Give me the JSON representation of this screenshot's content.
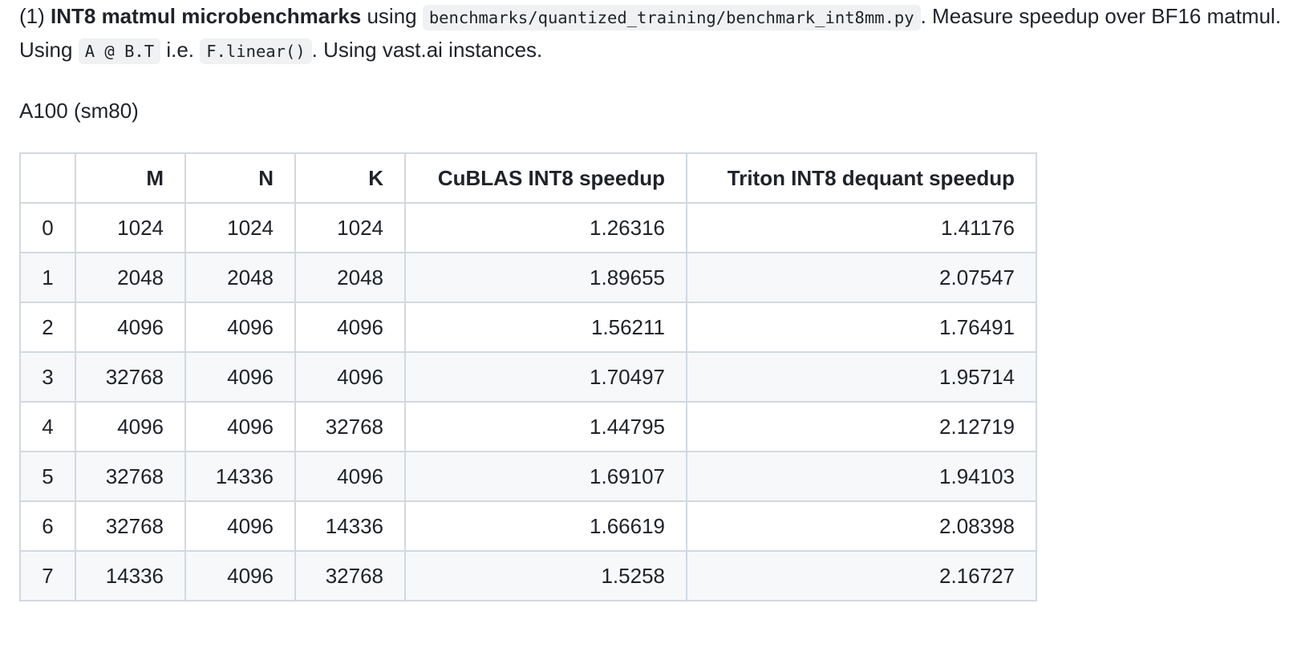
{
  "intro": {
    "prefix": "(1) ",
    "bold": "INT8 matmul microbenchmarks",
    "t1": " using ",
    "code_path": "benchmarks/quantized_training/benchmark_int8mm.py",
    "t2": ". Measure speedup over BF16 matmul. Using ",
    "code_expr": "A @ B.T",
    "t3": " i.e. ",
    "code_fn": "F.linear()",
    "t4": ". Using vast.ai instances."
  },
  "section_label": "A100 (sm80)",
  "table": {
    "headers": [
      "",
      "M",
      "N",
      "K",
      "CuBLAS INT8 speedup",
      "Triton INT8 dequant speedup"
    ],
    "rows": [
      [
        "0",
        "1024",
        "1024",
        "1024",
        "1.26316",
        "1.41176"
      ],
      [
        "1",
        "2048",
        "2048",
        "2048",
        "1.89655",
        "2.07547"
      ],
      [
        "2",
        "4096",
        "4096",
        "4096",
        "1.56211",
        "1.76491"
      ],
      [
        "3",
        "32768",
        "4096",
        "4096",
        "1.70497",
        "1.95714"
      ],
      [
        "4",
        "4096",
        "4096",
        "32768",
        "1.44795",
        "2.12719"
      ],
      [
        "5",
        "32768",
        "14336",
        "4096",
        "1.69107",
        "1.94103"
      ],
      [
        "6",
        "32768",
        "4096",
        "14336",
        "1.66619",
        "2.08398"
      ],
      [
        "7",
        "14336",
        "4096",
        "32768",
        "1.5258",
        "2.16727"
      ]
    ]
  },
  "colors": {
    "text": "#1f2328",
    "border": "#d1d9e0",
    "row_stripe": "#f6f8fa",
    "code_bg": "#eff1f3"
  }
}
